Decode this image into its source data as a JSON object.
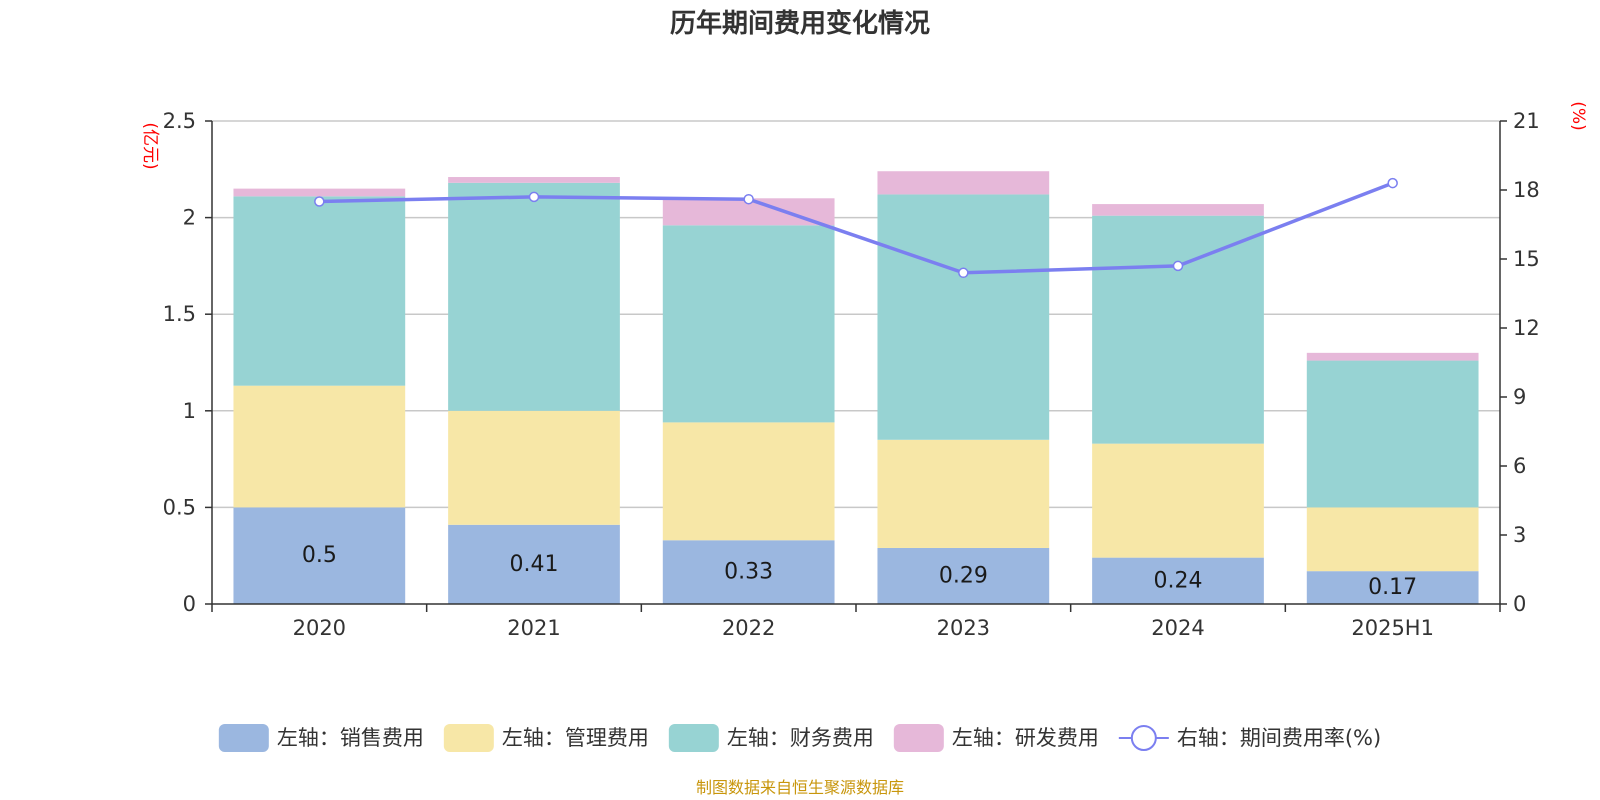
{
  "chart_data": {
    "type": "bar",
    "title": "历年期间费用变化情况",
    "categories": [
      "2020",
      "2021",
      "2022",
      "2023",
      "2024",
      "2025H1"
    ],
    "left_axis": {
      "unit_label": "(亿元)",
      "ylim": [
        0,
        2.5
      ],
      "ticks": [
        "0",
        "0.5",
        "1",
        "1.5",
        "2",
        "2.5"
      ],
      "tick_values": [
        0,
        0.5,
        1,
        1.5,
        2,
        2.5
      ]
    },
    "right_axis": {
      "unit_label": "(%)",
      "ylim": [
        0,
        21
      ],
      "ticks": [
        "0",
        "3",
        "6",
        "9",
        "12",
        "15",
        "18",
        "21"
      ],
      "tick_values": [
        0,
        3,
        6,
        9,
        12,
        15,
        18,
        21
      ]
    },
    "grid": true,
    "legend_position": "bottom",
    "stacked": true,
    "series": [
      {
        "name": "左轴：销售费用",
        "color": "#9bb7e0",
        "values": [
          0.5,
          0.41,
          0.33,
          0.29,
          0.24,
          0.17
        ],
        "labels": [
          "0.5",
          "0.41",
          "0.33",
          "0.29",
          "0.24",
          "0.17"
        ]
      },
      {
        "name": "左轴：管理费用",
        "color": "#f7e7a7",
        "values": [
          0.63,
          0.59,
          0.61,
          0.56,
          0.59,
          0.33
        ]
      },
      {
        "name": "左轴：财务费用",
        "color": "#97d3d3",
        "values": [
          0.98,
          1.18,
          1.02,
          1.27,
          1.18,
          0.76
        ]
      },
      {
        "name": "左轴：研发费用",
        "color": "#e6b8d9",
        "values": [
          0.04,
          0.03,
          0.14,
          0.12,
          0.06,
          0.04
        ]
      }
    ],
    "line_series": {
      "name": "右轴：期间费用率(%)",
      "color": "#7b7ff0",
      "axis": "right",
      "values": [
        17.5,
        17.7,
        17.6,
        14.4,
        14.7,
        18.3
      ]
    },
    "source": "制图数据来自恒生聚源数据库"
  }
}
